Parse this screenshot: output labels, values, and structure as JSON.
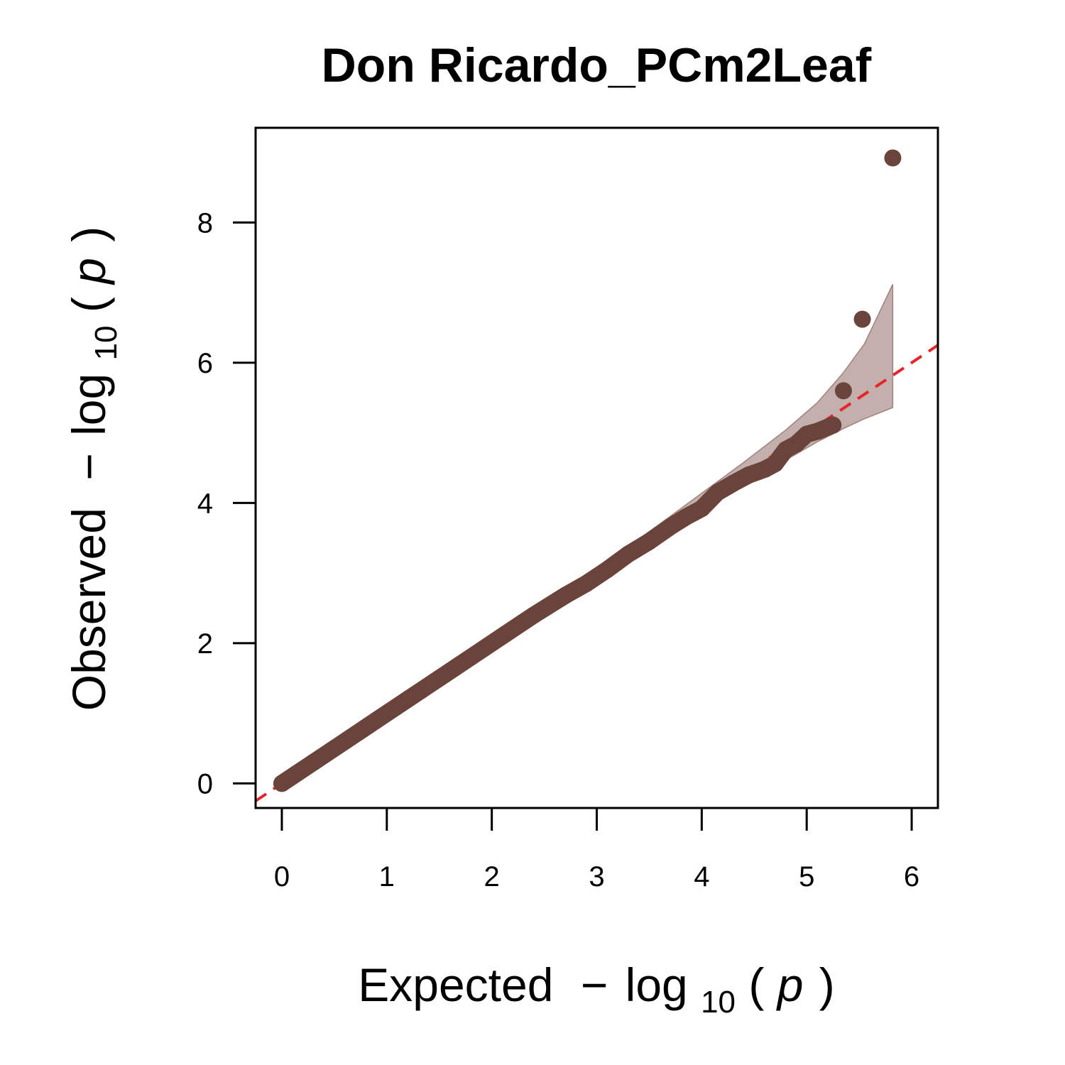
{
  "chart_data": {
    "type": "scatter",
    "title": "Don Ricardo_PCm2Leaf",
    "xlabel": {
      "prefix": "Expected",
      "minus": "−",
      "log": "log",
      "sub": "10",
      "open": "(",
      "var": "p",
      "close": ")"
    },
    "ylabel": {
      "prefix": "Observed",
      "minus": "−",
      "log": "log",
      "sub": "10",
      "open": "(",
      "var": "p",
      "close": ")"
    },
    "xlim": [
      -0.25,
      6.25
    ],
    "ylim": [
      -0.35,
      9.35
    ],
    "x_ticks": [
      0,
      1,
      2,
      3,
      4,
      5,
      6
    ],
    "x_tick_labels": [
      "0",
      "1",
      "2",
      "3",
      "4",
      "5",
      "6"
    ],
    "y_ticks": [
      0,
      2,
      4,
      6,
      8
    ],
    "y_tick_labels": [
      "0",
      "2",
      "4",
      "6",
      "8"
    ],
    "reference_line": {
      "slope": 1,
      "intercept": 0,
      "style": "dashed",
      "color": "#e8232a"
    },
    "confidence_band": {
      "color": "#7a4e46",
      "x": [
        2.8,
        3.2,
        3.6,
        4.0,
        4.4,
        4.8,
        5.1,
        5.35,
        5.55,
        5.82
      ],
      "upper": [
        2.84,
        3.27,
        3.7,
        4.14,
        4.58,
        5.04,
        5.43,
        5.86,
        6.27,
        7.12
      ],
      "lower": [
        2.76,
        3.14,
        3.51,
        3.88,
        4.25,
        4.61,
        4.87,
        5.06,
        5.2,
        5.36
      ]
    },
    "points": {
      "color": "#6a443a",
      "main_series_x": [
        0.0,
        0.3,
        0.6,
        0.9,
        1.2,
        1.5,
        1.8,
        2.1,
        2.4,
        2.7,
        2.9,
        3.1,
        3.3,
        3.5,
        3.7,
        3.85,
        4.0,
        4.15,
        4.3,
        4.45,
        4.6,
        4.7,
        4.8,
        4.9,
        5.0,
        5.1,
        5.2,
        5.25
      ],
      "main_series_y": [
        0.0,
        0.3,
        0.6,
        0.9,
        1.2,
        1.5,
        1.8,
        2.1,
        2.4,
        2.68,
        2.85,
        3.05,
        3.27,
        3.45,
        3.66,
        3.8,
        3.92,
        4.15,
        4.28,
        4.4,
        4.48,
        4.56,
        4.76,
        4.84,
        4.98,
        5.02,
        5.08,
        5.11
      ],
      "outliers_x": [
        5.35,
        5.53,
        5.82
      ],
      "outliers_y": [
        5.6,
        6.62,
        8.92
      ]
    }
  }
}
